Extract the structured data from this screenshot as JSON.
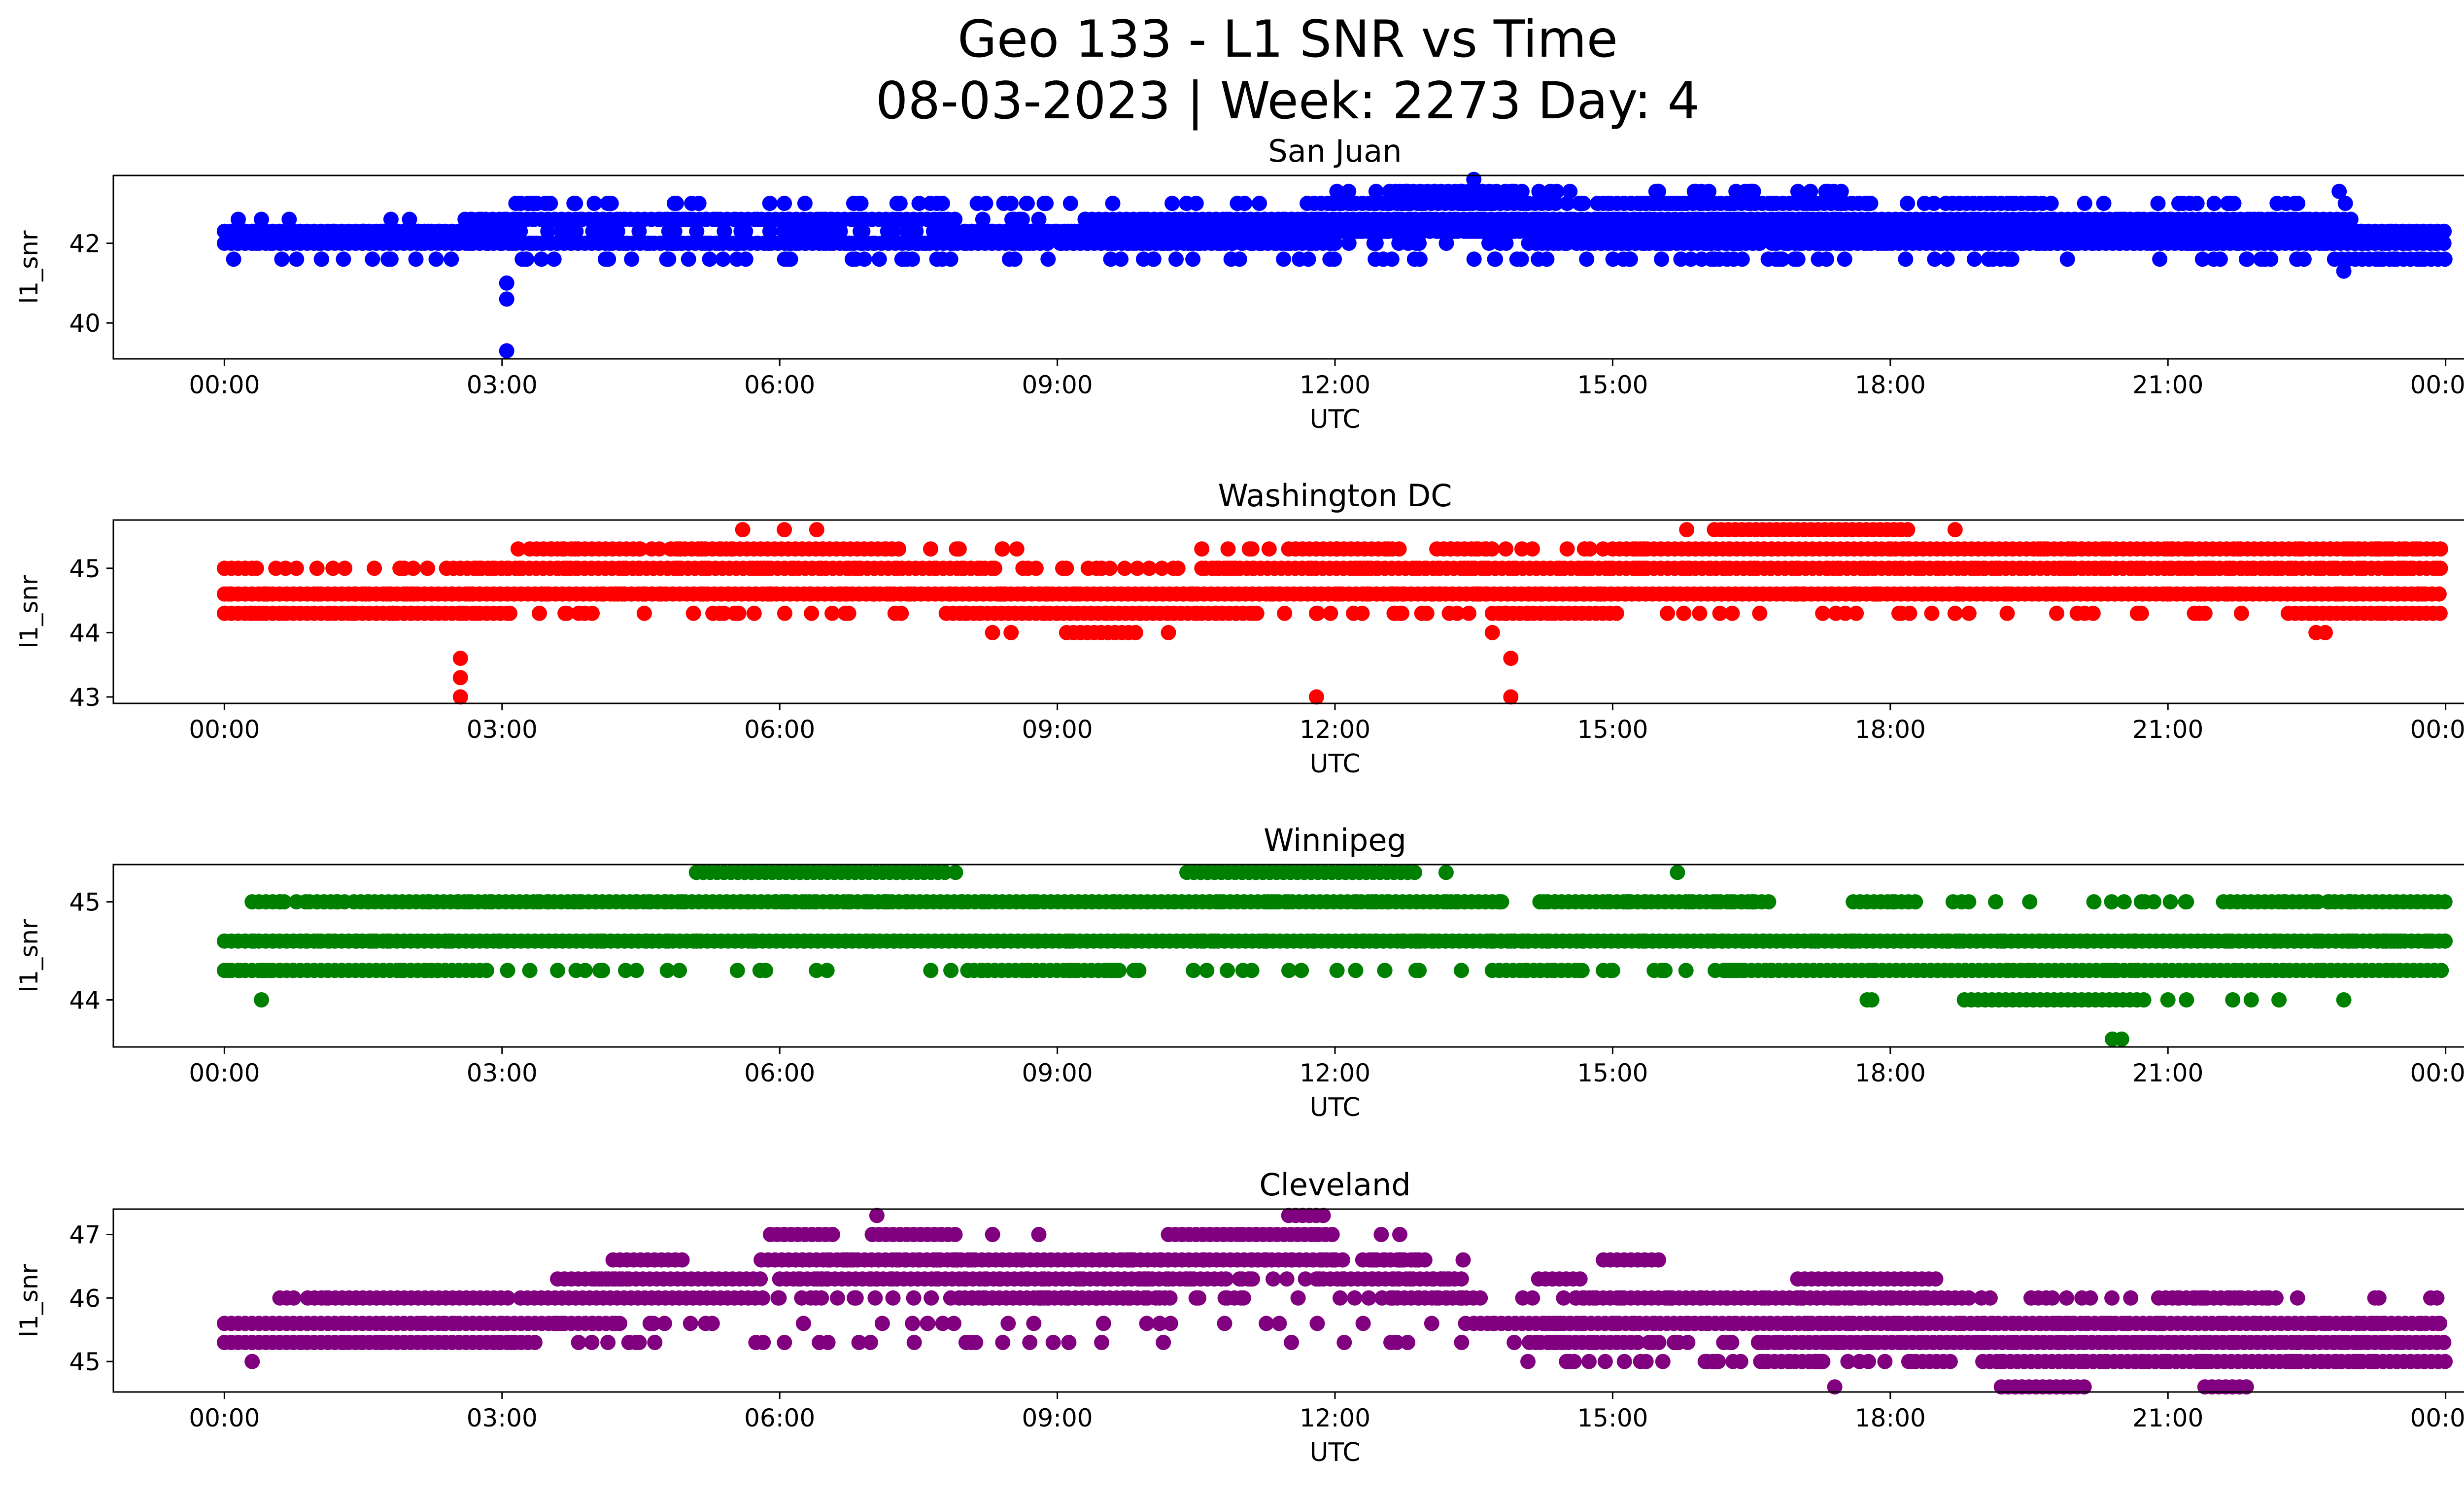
{
  "figure": {
    "title_line1": "Geo 133 - L1 SNR vs Time",
    "title_line2": "08-03-2023 | Week: 2273 Day: 4"
  },
  "chart_data": [
    {
      "type": "scatter",
      "title": "San Juan",
      "xlabel": "UTC",
      "ylabel": "l1_snr",
      "color": "#0000ff",
      "x_ticks": [
        "00:00",
        "03:00",
        "06:00",
        "09:00",
        "12:00",
        "15:00",
        "18:00",
        "21:00",
        "00:00"
      ],
      "x_tick_hours": [
        0,
        3,
        6,
        9,
        12,
        15,
        18,
        21,
        24
      ],
      "xlim": [
        -1.2,
        25.2
      ],
      "y_ticks": [
        40,
        42
      ],
      "ylim": [
        39.1,
        43.7
      ],
      "grid": false,
      "levels": [
        {
          "y": 42.3,
          "runs": [
            [
              0.0,
              2.6
            ],
            [
              2.6,
              3.2
            ],
            [
              8.0,
              9.0
            ],
            [
              9.0,
              24.0
            ]
          ]
        },
        {
          "y": 42.0,
          "runs": [
            [
              0.0,
              3.0
            ],
            [
              3.0,
              8.9
            ],
            [
              9.1,
              10.9
            ],
            [
              11.2,
              12.0
            ],
            [
              14.8,
              16.6
            ],
            [
              16.9,
              24.0
            ]
          ]
        },
        {
          "y": 42.6,
          "runs": [
            [
              2.6,
              7.9
            ],
            [
              9.3,
              11.6
            ],
            [
              11.6,
              15.0
            ],
            [
              15.0,
              23.0
            ]
          ]
        },
        {
          "y": 43.0,
          "runs": [
            [
              11.7,
              14.4
            ],
            [
              14.9,
              17.8
            ],
            [
              18.6,
              19.7
            ]
          ]
        },
        {
          "y": 41.6,
          "runs": [
            [
              22.8,
              24.0
            ]
          ]
        },
        {
          "y": 43.3,
          "runs": [
            [
              12.7,
              13.8
            ]
          ]
        }
      ],
      "points": [
        [
          0.1,
          41.6
        ],
        [
          1.05,
          41.6
        ],
        [
          1.6,
          41.6
        ],
        [
          1.8,
          41.6
        ],
        [
          4.4,
          41.6
        ],
        [
          4.8,
          41.6
        ],
        [
          8.9,
          41.6
        ],
        [
          16.1,
          41.6
        ],
        [
          16.4,
          41.6
        ],
        [
          22.4,
          41.6
        ],
        [
          22.9,
          41.3
        ],
        [
          3.05,
          41.0
        ],
        [
          3.05,
          40.6
        ],
        [
          3.05,
          39.3
        ],
        [
          13.5,
          43.6
        ],
        [
          22.85,
          43.3
        ],
        [
          16.5,
          43.3
        ],
        [
          3.15,
          43.0
        ],
        [
          6.05,
          43.0
        ],
        [
          10.5,
          43.0
        ],
        [
          21.5,
          43.0
        ],
        [
          20.1,
          43.0
        ],
        [
          7.3,
          43.0
        ],
        [
          6.8,
          43.0
        ],
        [
          7.7,
          43.0
        ],
        [
          0.15,
          42.6
        ],
        [
          0.4,
          42.6
        ],
        [
          0.7,
          42.6
        ],
        [
          1.8,
          42.6
        ],
        [
          2.0,
          42.6
        ],
        [
          8.8,
          42.6
        ],
        [
          22.6,
          42.6
        ]
      ],
      "bands": [
        {
          "x": [
            0.0,
            24.0
          ],
          "y": [
            41.6,
            42.3
          ],
          "count": 320
        },
        {
          "x": [
            2.6,
            23.0
          ],
          "y": [
            42.0,
            43.0
          ],
          "count": 380
        },
        {
          "x": [
            11.8,
            17.5
          ],
          "y": [
            42.3,
            43.3
          ],
          "count": 150
        }
      ]
    },
    {
      "type": "scatter",
      "title": "Washington DC",
      "xlabel": "UTC",
      "ylabel": "l1_snr",
      "color": "#ff0000",
      "x_ticks": [
        "00:00",
        "03:00",
        "06:00",
        "09:00",
        "12:00",
        "15:00",
        "18:00",
        "21:00",
        "00:00"
      ],
      "x_tick_hours": [
        0,
        3,
        6,
        9,
        12,
        15,
        18,
        21,
        24
      ],
      "xlim": [
        -1.2,
        25.2
      ],
      "y_ticks": [
        43,
        44,
        45
      ],
      "ylim": [
        42.9,
        45.75
      ],
      "grid": false,
      "levels": [
        {
          "y": 44.6,
          "runs": [
            [
              0.0,
              24.0
            ]
          ]
        },
        {
          "y": 44.3,
          "runs": [
            [
              0.0,
              3.1
            ],
            [
              7.8,
              11.2
            ],
            [
              13.7,
              15.1
            ],
            [
              22.3,
              24.0
            ]
          ]
        },
        {
          "y": 45.0,
          "runs": [
            [
              0.0,
              0.35
            ],
            [
              2.4,
              8.3
            ],
            [
              10.6,
              24.0
            ]
          ]
        },
        {
          "y": 45.3,
          "runs": [
            [
              3.3,
              4.5
            ],
            [
              4.9,
              7.3
            ],
            [
              11.5,
              12.7
            ],
            [
              13.1,
              13.7
            ],
            [
              15.0,
              24.0
            ]
          ]
        },
        {
          "y": 45.6,
          "runs": [
            [
              16.1,
              18.2
            ]
          ]
        },
        {
          "y": 44.0,
          "runs": [
            [
              9.1,
              9.9
            ]
          ]
        }
      ],
      "points": [
        [
          2.55,
          43.6
        ],
        [
          2.55,
          43.3
        ],
        [
          2.55,
          43.0
        ],
        [
          13.9,
          43.6
        ],
        [
          13.9,
          43.0
        ],
        [
          11.8,
          43.0
        ],
        [
          8.3,
          44.0
        ],
        [
          8.5,
          44.0
        ],
        [
          10.2,
          44.0
        ],
        [
          13.7,
          44.0
        ],
        [
          22.6,
          44.0
        ],
        [
          22.7,
          44.0
        ],
        [
          5.6,
          45.6
        ],
        [
          6.05,
          45.6
        ],
        [
          6.4,
          45.6
        ],
        [
          15.8,
          45.6
        ],
        [
          18.7,
          45.6
        ],
        [
          3.7,
          44.3
        ],
        [
          12.2,
          44.3
        ],
        [
          11.8,
          44.3
        ],
        [
          20.1,
          44.3
        ],
        [
          21.4,
          44.3
        ],
        [
          1.0,
          45.0
        ],
        [
          1.3,
          45.0
        ]
      ],
      "bands": [
        {
          "x": [
            0.0,
            24.0
          ],
          "y": [
            44.3,
            45.0
          ],
          "count": 300
        },
        {
          "x": [
            3.0,
            24.0
          ],
          "y": [
            45.0,
            45.3
          ],
          "count": 140
        }
      ]
    },
    {
      "type": "scatter",
      "title": "Winnipeg",
      "xlabel": "UTC",
      "ylabel": "l1_snr",
      "color": "#008000",
      "x_ticks": [
        "00:00",
        "03:00",
        "06:00",
        "09:00",
        "12:00",
        "15:00",
        "18:00",
        "21:00",
        "00:00"
      ],
      "x_tick_hours": [
        0,
        3,
        6,
        9,
        12,
        15,
        18,
        21,
        24
      ],
      "xlim": [
        -1.2,
        25.2
      ],
      "y_ticks": [
        44,
        45
      ],
      "ylim": [
        43.52,
        45.38
      ],
      "grid": false,
      "levels": [
        {
          "y": 44.6,
          "runs": [
            [
              0.0,
              24.0
            ]
          ]
        },
        {
          "y": 44.3,
          "runs": [
            [
              0.0,
              2.9
            ],
            [
              8.1,
              9.7
            ],
            [
              13.7,
              14.7
            ],
            [
              16.2,
              24.0
            ]
          ]
        },
        {
          "y": 45.0,
          "runs": [
            [
              0.3,
              0.6
            ],
            [
              1.0,
              1.3
            ],
            [
              1.4,
              13.8
            ],
            [
              14.3,
              16.7
            ],
            [
              17.6,
              18.3
            ],
            [
              21.6,
              22.6
            ],
            [
              22.8,
              24.0
            ]
          ]
        },
        {
          "y": 45.3,
          "runs": [
            [
              5.1,
              7.8
            ],
            [
              10.4,
              12.9
            ]
          ]
        },
        {
          "y": 44.0,
          "runs": [
            [
              18.8,
              20.8
            ]
          ]
        }
      ],
      "points": [
        [
          0.4,
          44.0
        ],
        [
          17.8,
          44.0
        ],
        [
          17.75,
          44.0
        ],
        [
          21.0,
          44.0
        ],
        [
          21.2,
          44.0
        ],
        [
          21.7,
          44.0
        ],
        [
          21.9,
          44.0
        ],
        [
          22.2,
          44.0
        ],
        [
          22.9,
          44.0
        ],
        [
          20.4,
          43.6
        ],
        [
          20.5,
          43.6
        ],
        [
          13.2,
          45.3
        ],
        [
          15.7,
          45.3
        ],
        [
          7.9,
          45.3
        ],
        [
          3.3,
          44.3
        ],
        [
          3.6,
          44.3
        ],
        [
          3.8,
          44.3
        ],
        [
          15.0,
          44.3
        ],
        [
          14.9,
          44.3
        ],
        [
          20.2,
          45.0
        ],
        [
          21.2,
          45.0
        ]
      ],
      "bands": [
        {
          "x": [
            0.0,
            24.0
          ],
          "y": [
            44.3,
            45.0
          ],
          "count": 260
        }
      ]
    },
    {
      "type": "scatter",
      "title": "Cleveland",
      "xlabel": "UTC",
      "ylabel": "l1_snr",
      "color": "#800080",
      "x_ticks": [
        "00:00",
        "03:00",
        "06:00",
        "09:00",
        "12:00",
        "15:00",
        "18:00",
        "21:00",
        "00:00"
      ],
      "x_tick_hours": [
        0,
        3,
        6,
        9,
        12,
        15,
        18,
        21,
        24
      ],
      "xlim": [
        -1.2,
        25.2
      ],
      "y_ticks": [
        45,
        46,
        47
      ],
      "ylim": [
        44.52,
        47.4
      ],
      "grid": false,
      "levels": [
        {
          "y": 45.6,
          "runs": [
            [
              0.0,
              3.6
            ],
            [
              3.6,
              4.3
            ],
            [
              13.5,
              24.0
            ]
          ]
        },
        {
          "y": 45.3,
          "runs": [
            [
              0.0,
              3.4
            ],
            [
              14.3,
              15.3
            ],
            [
              16.6,
              24.0
            ]
          ]
        },
        {
          "y": 46.0,
          "runs": [
            [
              0.6,
              0.8
            ],
            [
              0.9,
              3.1
            ],
            [
              3.2,
              5.8
            ],
            [
              8.0,
              10.0
            ],
            [
              12.6,
              13.6
            ],
            [
              14.6,
              18.9
            ],
            [
              20.9,
              22.2
            ]
          ]
        },
        {
          "y": 46.3,
          "runs": [
            [
              3.6,
              4.4
            ],
            [
              4.0,
              5.8
            ],
            [
              6.0,
              10.8
            ],
            [
              11.8,
              13.4
            ],
            [
              14.2,
              14.7
            ],
            [
              17.0,
              18.5
            ]
          ]
        },
        {
          "y": 46.6,
          "runs": [
            [
              4.2,
              5.0
            ],
            [
              5.8,
              12.0
            ],
            [
              12.3,
              13.0
            ],
            [
              14.9,
              15.5
            ]
          ]
        },
        {
          "y": 47.0,
          "runs": [
            [
              5.9,
              6.6
            ],
            [
              7.0,
              7.9
            ],
            [
              10.2,
              11.0
            ],
            [
              11.0,
              12.0
            ]
          ]
        },
        {
          "y": 45.0,
          "runs": [
            [
              16.6,
              17.3
            ],
            [
              18.2,
              18.7
            ],
            [
              19.0,
              24.0
            ]
          ]
        },
        {
          "y": 47.3,
          "runs": [
            [
              11.5,
              11.9
            ]
          ]
        },
        {
          "y": 44.6,
          "runs": [
            [
              19.2,
              20.1
            ],
            [
              21.4,
              21.9
            ]
          ]
        }
      ],
      "points": [
        [
          0.3,
          45.0
        ],
        [
          1.1,
          46.0
        ],
        [
          3.0,
          45.6
        ],
        [
          4.6,
          45.6
        ],
        [
          5.2,
          45.6
        ],
        [
          7.05,
          47.3
        ],
        [
          8.3,
          47.0
        ],
        [
          8.8,
          47.0
        ],
        [
          11.8,
          47.0
        ],
        [
          12.5,
          47.0
        ],
        [
          12.7,
          47.0
        ],
        [
          17.4,
          44.6
        ],
        [
          16.0,
          45.0
        ],
        [
          16.3,
          45.0
        ],
        [
          16.8,
          45.3
        ],
        [
          20.7,
          45.3
        ],
        [
          22.4,
          46.0
        ],
        [
          21.3,
          46.0
        ],
        [
          19.8,
          45.6
        ],
        [
          19.6,
          46.0
        ],
        [
          22.9,
          45.3
        ]
      ],
      "bands": [
        {
          "x": [
            0.0,
            24.0
          ],
          "y": [
            45.3,
            45.6
          ],
          "count": 120
        },
        {
          "x": [
            5.8,
            13.4
          ],
          "y": [
            46.0,
            46.6
          ],
          "count": 150
        },
        {
          "x": [
            14.0,
            24.0
          ],
          "y": [
            45.0,
            46.0
          ],
          "count": 180
        }
      ]
    }
  ]
}
